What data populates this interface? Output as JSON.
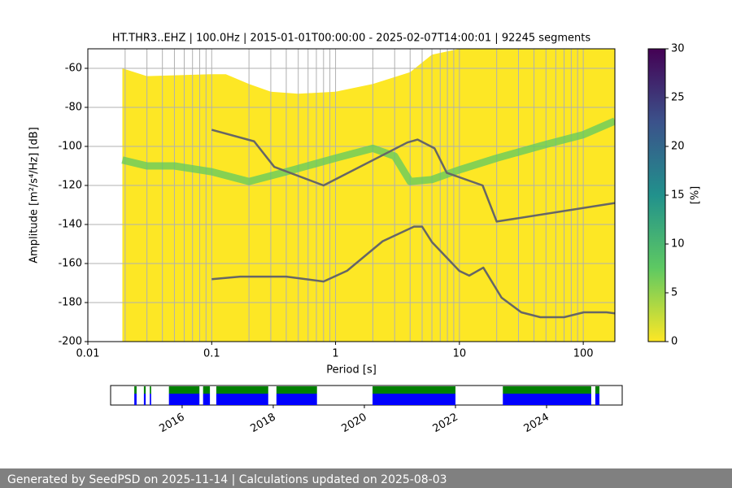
{
  "chart_data": [
    {
      "type": "line",
      "title": "HT.THR3..EHZ | 100.0Hz | 2015-01-01T00:00:00 - 2025-02-07T14:00:01 | 92245 segments",
      "x_label": "Period [s]",
      "y_label": "Amplitude [m²/s⁴/Hz] [dB]",
      "x_scale": "log",
      "xlim": [
        0.01,
        180
      ],
      "xticks": [
        0.01,
        0.1,
        1,
        10,
        100
      ],
      "ylim": [
        -200,
        -50
      ],
      "yticks": [
        -60,
        -80,
        -100,
        -120,
        -140,
        -160,
        -180,
        -200
      ],
      "grid": true,
      "series": [
        {
          "color": "#fde725",
          "fill": true,
          "x": [
            0.019,
            0.03,
            0.1,
            0.13,
            0.2,
            0.3,
            0.5,
            1,
            2,
            4,
            6,
            10,
            180
          ],
          "values": [
            -60,
            -64,
            -63,
            -63,
            -68,
            -72,
            -73,
            -72,
            -68,
            -62,
            -53,
            -50,
            -50
          ]
        },
        {
          "color": "#5ec962",
          "width": 9,
          "x": [
            0.019,
            0.03,
            0.05,
            0.1,
            0.2,
            0.4,
            1,
            2,
            3,
            4,
            6,
            10,
            20,
            50,
            100,
            180
          ],
          "values": [
            -107,
            -110,
            -110,
            -113,
            -118,
            -113,
            -106,
            -101,
            -105,
            -118,
            -117,
            -112,
            -106,
            -99,
            -94,
            -87
          ]
        },
        {
          "color": "#666666",
          "width": 2.5,
          "x": [
            0.1,
            0.22,
            0.32,
            0.8,
            3.8,
            4.6,
            6.3,
            7.9,
            15.4,
            20,
            180
          ],
          "values": [
            -91.5,
            -97.4,
            -110.5,
            -120,
            -98,
            -96.5,
            -101,
            -113.5,
            -120,
            -138.5,
            -129
          ]
        },
        {
          "color": "#666666",
          "width": 2.5,
          "x": [
            0.1,
            0.17,
            0.4,
            0.8,
            1.24,
            2.4,
            4.3,
            5.0,
            6.0,
            10,
            12,
            15.6,
            21.9,
            31.6,
            45,
            70,
            101,
            154,
            180
          ],
          "values": [
            -168,
            -166.7,
            -166.7,
            -169.2,
            -163.7,
            -148.6,
            -141.1,
            -141.1,
            -149,
            -163.8,
            -166.2,
            -162.1,
            -177.5,
            -185,
            -187.5,
            -187.5,
            -185,
            -185,
            -185.5
          ]
        }
      ]
    },
    {
      "type": "colorbar",
      "label": "[%]",
      "ylim": [
        0,
        30
      ],
      "yticks": [
        0,
        5,
        10,
        15,
        20,
        25,
        30
      ],
      "colors": [
        "#fde725",
        "#5ec962",
        "#21918c",
        "#3b528b",
        "#440154"
      ]
    },
    {
      "type": "timeline",
      "xlim": [
        2014.43,
        2025.66
      ],
      "xticks": [
        2016,
        2018,
        2020,
        2022,
        2024
      ],
      "colors": [
        "#0000ff",
        "#008000"
      ],
      "segments": [
        [
          2014.95,
          2015.0
        ],
        [
          2015.16,
          2015.2
        ],
        [
          2015.29,
          2015.32
        ],
        [
          2015.71,
          2016.38
        ],
        [
          2016.46,
          2016.61
        ],
        [
          2016.75,
          2017.89
        ],
        [
          2018.07,
          2018.96
        ],
        [
          2020.18,
          2022.0
        ],
        [
          2023.04,
          2024.98
        ],
        [
          2025.07,
          2025.16
        ]
      ]
    }
  ],
  "footer": "Generated by SeedPSD on 2025-11-14 | Calculations updated on 2025-08-03"
}
